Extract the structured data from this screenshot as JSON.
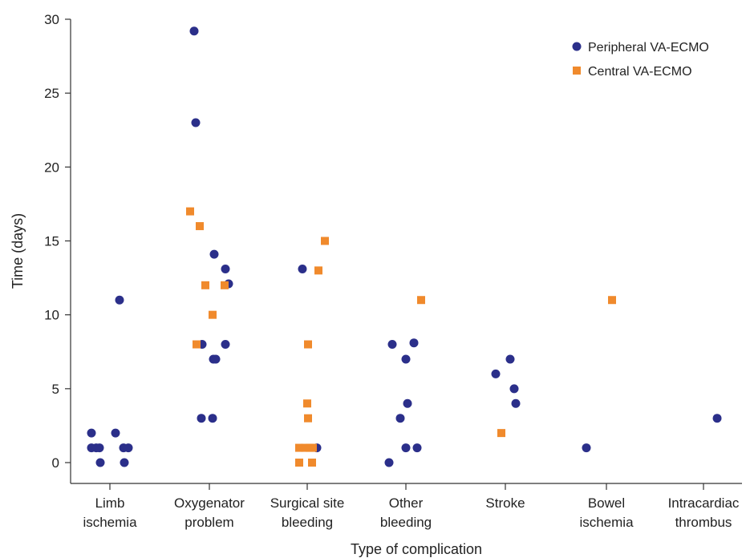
{
  "chart_data": {
    "type": "scatter",
    "xlabel": "Type of complication",
    "ylabel": "Time (days)",
    "ylim": [
      0,
      30
    ],
    "yticks": [
      "0",
      "5",
      "10",
      "15",
      "20",
      "25",
      "30"
    ],
    "categories": [
      [
        "Limb",
        "ischemia"
      ],
      [
        "Oxygenator",
        "problem"
      ],
      [
        "Surgical site",
        "bleeding"
      ],
      [
        "Other",
        "bleeding"
      ],
      [
        "Stroke",
        ""
      ],
      [
        "Bowel",
        "ischemia"
      ],
      [
        "Intracardiac",
        "thrombus"
      ]
    ],
    "legend_position": "top-right",
    "grid": false,
    "series": [
      {
        "name": "Peripheral VA-ECMO",
        "marker": "circle",
        "color": "#2b2f8a",
        "points": [
          {
            "category": 0,
            "y": 2
          },
          {
            "category": 0,
            "y": 1
          },
          {
            "category": 0,
            "y": 1
          },
          {
            "category": 0,
            "y": 1
          },
          {
            "category": 0,
            "y": 0
          },
          {
            "category": 0,
            "y": 2
          },
          {
            "category": 0,
            "y": 11
          },
          {
            "category": 0,
            "y": 1
          },
          {
            "category": 0,
            "y": 1
          },
          {
            "category": 0,
            "y": 0
          },
          {
            "category": 1,
            "y": 29.2
          },
          {
            "category": 1,
            "y": 23
          },
          {
            "category": 1,
            "y": 14.1
          },
          {
            "category": 1,
            "y": 13.1
          },
          {
            "category": 1,
            "y": 12.1
          },
          {
            "category": 1,
            "y": 8
          },
          {
            "category": 1,
            "y": 8
          },
          {
            "category": 1,
            "y": 7
          },
          {
            "category": 1,
            "y": 7
          },
          {
            "category": 1,
            "y": 3
          },
          {
            "category": 1,
            "y": 3
          },
          {
            "category": 2,
            "y": 13.1
          },
          {
            "category": 2,
            "y": 1
          },
          {
            "category": 3,
            "y": 8
          },
          {
            "category": 3,
            "y": 8.1
          },
          {
            "category": 3,
            "y": 7
          },
          {
            "category": 3,
            "y": 4
          },
          {
            "category": 3,
            "y": 3
          },
          {
            "category": 3,
            "y": 1
          },
          {
            "category": 3,
            "y": 1
          },
          {
            "category": 3,
            "y": 0
          },
          {
            "category": 4,
            "y": 6
          },
          {
            "category": 4,
            "y": 7
          },
          {
            "category": 4,
            "y": 5
          },
          {
            "category": 4,
            "y": 4
          },
          {
            "category": 5,
            "y": 1
          },
          {
            "category": 6,
            "y": 3
          }
        ]
      },
      {
        "name": "Central VA-ECMO",
        "marker": "square",
        "color": "#f08a2c",
        "points": [
          {
            "category": 1,
            "y": 17
          },
          {
            "category": 1,
            "y": 16
          },
          {
            "category": 1,
            "y": 12
          },
          {
            "category": 1,
            "y": 12
          },
          {
            "category": 1,
            "y": 10
          },
          {
            "category": 1,
            "y": 8
          },
          {
            "category": 2,
            "y": 15
          },
          {
            "category": 2,
            "y": 13
          },
          {
            "category": 2,
            "y": 8
          },
          {
            "category": 2,
            "y": 4
          },
          {
            "category": 2,
            "y": 3
          },
          {
            "category": 2,
            "y": 1
          },
          {
            "category": 2,
            "y": 1
          },
          {
            "category": 2,
            "y": 1
          },
          {
            "category": 2,
            "y": 1
          },
          {
            "category": 2,
            "y": 0
          },
          {
            "category": 2,
            "y": 0
          },
          {
            "category": 3,
            "y": 11
          },
          {
            "category": 4,
            "y": 2
          },
          {
            "category": 5,
            "y": 11
          }
        ]
      }
    ]
  }
}
